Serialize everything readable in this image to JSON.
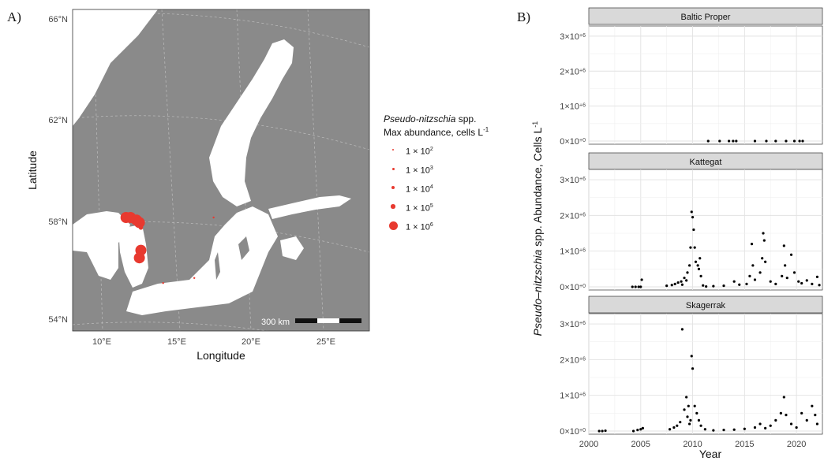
{
  "panels": {
    "a_label": "A)",
    "b_label": "B)"
  },
  "map": {
    "lat_ticks": [
      "66°N",
      "62°N",
      "58°N",
      "54°N"
    ],
    "lon_ticks": [
      "10°E",
      "15°E",
      "20°E",
      "25°E"
    ],
    "xlabel": "Longitude",
    "ylabel": "Latitude",
    "scale_bar": "300 km",
    "colors": {
      "land": "#8a8a8a",
      "sea": "#ffffff",
      "points": "#e8392f"
    },
    "points": [
      {
        "lon": 11.6,
        "lat": 58.0,
        "size_class": 5
      },
      {
        "lon": 11.9,
        "lat": 58.0,
        "size_class": 5
      },
      {
        "lon": 12.3,
        "lat": 57.9,
        "size_class": 5
      },
      {
        "lon": 12.5,
        "lat": 57.8,
        "size_class": 5
      },
      {
        "lon": 12.6,
        "lat": 57.6,
        "size_class": 4
      },
      {
        "lon": 12.6,
        "lat": 56.7,
        "size_class": 5
      },
      {
        "lon": 12.5,
        "lat": 56.4,
        "size_class": 5
      },
      {
        "lon": 14.1,
        "lat": 55.4,
        "size_class": 1
      },
      {
        "lon": 16.2,
        "lat": 55.6,
        "size_class": 1
      },
      {
        "lon": 17.5,
        "lat": 58.0,
        "size_class": 1
      }
    ]
  },
  "legend": {
    "title_italic": "Pseudo-nitzschia",
    "title_rest": " spp.",
    "subtitle": "Max abundance, cells L",
    "subtitle_sup": "-1",
    "entries": [
      {
        "label": "1 × 10",
        "exp": "2"
      },
      {
        "label": "1 × 10",
        "exp": "3"
      },
      {
        "label": "1 × 10",
        "exp": "4"
      },
      {
        "label": "1 × 10",
        "exp": "5"
      },
      {
        "label": "1 × 10",
        "exp": "6"
      }
    ]
  },
  "chart_data": {
    "type": "scatter",
    "xlabel": "Year",
    "ylabel_italic": "Pseudo–nitzschia",
    "ylabel_rest": " spp. Abundance, Cells L",
    "ylabel_sup": "-1",
    "xlim": [
      2000,
      2022.5
    ],
    "ylim": [
      0,
      3200000
    ],
    "x_ticks": [
      2000,
      2005,
      2010,
      2015,
      2020
    ],
    "y_ticks": [
      {
        "value": 0,
        "label": "0×10",
        "exp": "+0"
      },
      {
        "value": 1000000,
        "label": "1×10",
        "exp": "+6"
      },
      {
        "value": 2000000,
        "label": "2×10",
        "exp": "+6"
      },
      {
        "value": 3000000,
        "label": "3×10",
        "exp": "+6"
      }
    ],
    "grid": true,
    "facets": [
      {
        "name": "Baltic Proper",
        "points": [
          [
            2011.5,
            0
          ],
          [
            2012.6,
            0
          ],
          [
            2013.5,
            0
          ],
          [
            2013.9,
            0
          ],
          [
            2014.2,
            0
          ],
          [
            2016.0,
            0
          ],
          [
            2017.1,
            0
          ],
          [
            2018.0,
            0
          ],
          [
            2019.0,
            0
          ],
          [
            2019.8,
            0
          ],
          [
            2020.3,
            0
          ],
          [
            2020.6,
            0
          ]
        ]
      },
      {
        "name": "Kattegat",
        "points": [
          [
            2004.2,
            0
          ],
          [
            2004.5,
            0
          ],
          [
            2004.8,
            0
          ],
          [
            2005.0,
            0
          ],
          [
            2005.1,
            200000
          ],
          [
            2007.5,
            30000
          ],
          [
            2008.0,
            50000
          ],
          [
            2008.3,
            80000
          ],
          [
            2008.6,
            120000
          ],
          [
            2008.9,
            150000
          ],
          [
            2009.0,
            60000
          ],
          [
            2009.2,
            250000
          ],
          [
            2009.4,
            180000
          ],
          [
            2009.5,
            400000
          ],
          [
            2009.7,
            600000
          ],
          [
            2009.8,
            1100000
          ],
          [
            2009.9,
            2100000
          ],
          [
            2010.0,
            1950000
          ],
          [
            2010.1,
            1600000
          ],
          [
            2010.2,
            1100000
          ],
          [
            2010.3,
            700000
          ],
          [
            2010.5,
            600000
          ],
          [
            2010.6,
            500000
          ],
          [
            2010.7,
            800000
          ],
          [
            2010.8,
            300000
          ],
          [
            2011.0,
            40000
          ],
          [
            2011.3,
            10000
          ],
          [
            2012.0,
            20000
          ],
          [
            2013.0,
            30000
          ],
          [
            2014.0,
            150000
          ],
          [
            2014.5,
            60000
          ],
          [
            2015.2,
            80000
          ],
          [
            2015.5,
            300000
          ],
          [
            2015.7,
            1200000
          ],
          [
            2015.8,
            600000
          ],
          [
            2016.0,
            200000
          ],
          [
            2016.5,
            400000
          ],
          [
            2016.7,
            800000
          ],
          [
            2016.8,
            1500000
          ],
          [
            2016.9,
            1300000
          ],
          [
            2017.0,
            700000
          ],
          [
            2017.5,
            150000
          ],
          [
            2018.0,
            80000
          ],
          [
            2018.6,
            300000
          ],
          [
            2018.8,
            1150000
          ],
          [
            2018.9,
            600000
          ],
          [
            2019.1,
            250000
          ],
          [
            2019.5,
            900000
          ],
          [
            2019.8,
            400000
          ],
          [
            2020.2,
            150000
          ],
          [
            2020.5,
            100000
          ],
          [
            2021.0,
            180000
          ],
          [
            2021.5,
            80000
          ],
          [
            2022.0,
            280000
          ],
          [
            2022.2,
            50000
          ]
        ]
      },
      {
        "name": "Skagerrak",
        "points": [
          [
            2001.0,
            0
          ],
          [
            2001.3,
            0
          ],
          [
            2001.6,
            10000
          ],
          [
            2004.3,
            0
          ],
          [
            2004.7,
            30000
          ],
          [
            2005.0,
            50000
          ],
          [
            2005.2,
            80000
          ],
          [
            2007.8,
            50000
          ],
          [
            2008.2,
            100000
          ],
          [
            2008.5,
            150000
          ],
          [
            2008.8,
            250000
          ],
          [
            2009.0,
            2850000
          ],
          [
            2009.2,
            600000
          ],
          [
            2009.4,
            950000
          ],
          [
            2009.5,
            400000
          ],
          [
            2009.6,
            700000
          ],
          [
            2009.7,
            200000
          ],
          [
            2009.8,
            300000
          ],
          [
            2009.9,
            2100000
          ],
          [
            2010.0,
            1750000
          ],
          [
            2010.2,
            700000
          ],
          [
            2010.4,
            500000
          ],
          [
            2010.6,
            300000
          ],
          [
            2010.8,
            150000
          ],
          [
            2011.2,
            50000
          ],
          [
            2012.0,
            20000
          ],
          [
            2013.0,
            30000
          ],
          [
            2014.0,
            40000
          ],
          [
            2015.0,
            60000
          ],
          [
            2016.0,
            100000
          ],
          [
            2016.5,
            200000
          ],
          [
            2017.0,
            80000
          ],
          [
            2017.5,
            150000
          ],
          [
            2018.0,
            300000
          ],
          [
            2018.5,
            500000
          ],
          [
            2018.8,
            950000
          ],
          [
            2019.0,
            450000
          ],
          [
            2019.5,
            200000
          ],
          [
            2020.0,
            100000
          ],
          [
            2020.5,
            500000
          ],
          [
            2021.0,
            300000
          ],
          [
            2021.5,
            700000
          ],
          [
            2021.8,
            450000
          ],
          [
            2022.0,
            200000
          ]
        ]
      }
    ]
  }
}
